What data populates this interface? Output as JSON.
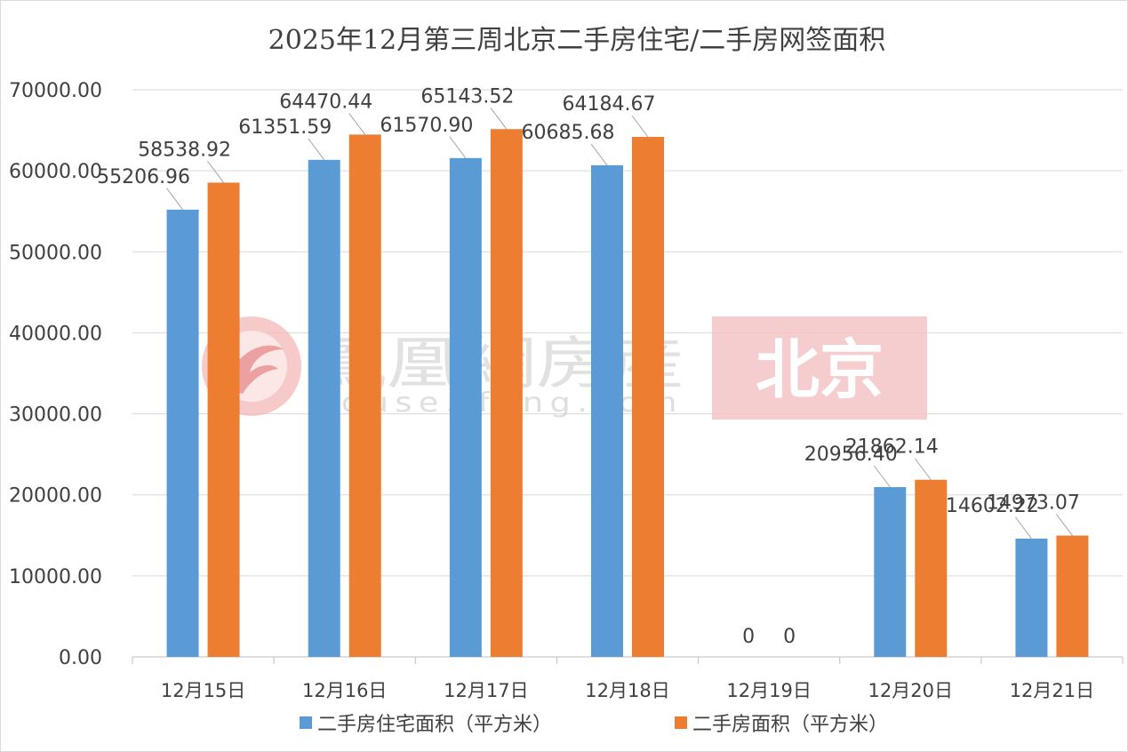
{
  "chart_data": {
    "type": "bar",
    "title": "2025年12月第三周北京二手房住宅/二手房网签面积",
    "categories": [
      "12月15日",
      "12月16日",
      "12月17日",
      "12月18日",
      "12月19日",
      "12月20日",
      "12月21日"
    ],
    "series": [
      {
        "name": "二手房住宅面积（平方米）",
        "color": "#5b9bd5",
        "values": [
          55206.96,
          61351.59,
          61570.9,
          60685.68,
          0,
          20956.4,
          14602.22
        ],
        "labels": [
          "55206.96",
          "61351.59",
          "61570.90",
          "60685.68",
          "0",
          "20956.40",
          "14602.22"
        ]
      },
      {
        "name": "二手房面积（平方米）",
        "color": "#ed7d31",
        "values": [
          58538.92,
          64470.44,
          65143.52,
          64184.67,
          0,
          21862.14,
          14973.07
        ],
        "labels": [
          "58538.92",
          "64470.44",
          "65143.52",
          "64184.67",
          "0",
          "21862.14",
          "14973.07"
        ]
      }
    ],
    "ylim": [
      0,
      70000
    ],
    "yticks": [
      "0.00",
      "10000.00",
      "20000.00",
      "30000.00",
      "40000.00",
      "50000.00",
      "60000.00",
      "70000.00"
    ],
    "grid": true,
    "legend": "bottom"
  },
  "watermark": {
    "brand": "鳳凰網房産",
    "url": "house.ifeng.com",
    "city": "北京",
    "logo_icon": "phoenix-logo-icon",
    "brand_color": "#e8908e",
    "city_bg_color": "#f4c4c6"
  }
}
